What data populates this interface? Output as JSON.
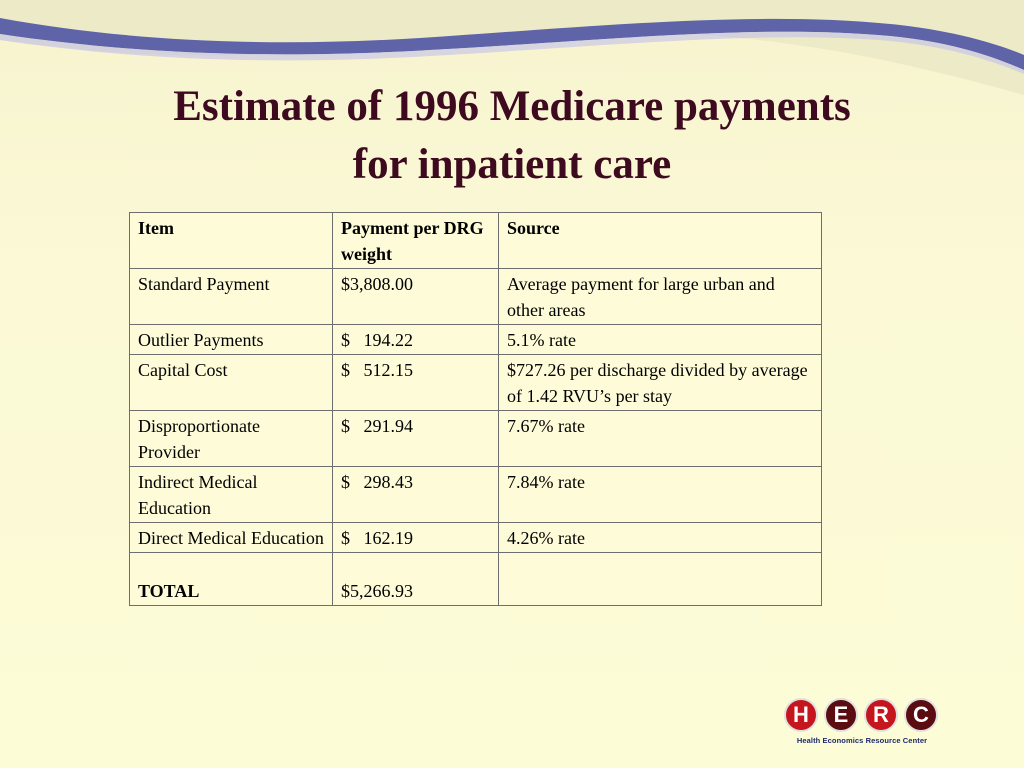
{
  "slide": {
    "title_line1": "Estimate of 1996 Medicare payments",
    "title_line2": "for inpatient care"
  },
  "table": {
    "headers": [
      "Item",
      "Payment per DRG weight",
      "Source"
    ],
    "rows": [
      {
        "item": "Standard Payment",
        "payment": "$3,808.00",
        "source": "Average payment for large urban and other areas"
      },
      {
        "item": "Outlier Payments",
        "payment": "$   194.22",
        "source": "5.1% rate"
      },
      {
        "item": "Capital Cost",
        "payment": "$   512.15",
        "source": "$727.26 per discharge divided by average of 1.42 RVU’s per stay"
      },
      {
        "item": "Disproportionate Provider",
        "payment": "$   291.94",
        "source": "7.67% rate"
      },
      {
        "item": "Indirect Medical Education",
        "payment": "$   298.43",
        "source": "7.84% rate"
      },
      {
        "item": "Direct Medical Education",
        "payment": "$   162.19",
        "source": "4.26% rate"
      }
    ],
    "total": {
      "label": "TOTAL",
      "payment": "$5,266.93",
      "source": ""
    }
  },
  "logo": {
    "letters": [
      "H",
      "E",
      "R",
      "C"
    ],
    "caption": "Health Economics Resource Center",
    "colors": {
      "red": "#c4161c",
      "dark_red": "#5a0c10",
      "navy": "#1f2a6b"
    }
  },
  "theme": {
    "title_color": "#3d0a1f",
    "banner_color": "#5f63a8",
    "background": "#fcfcd7"
  }
}
